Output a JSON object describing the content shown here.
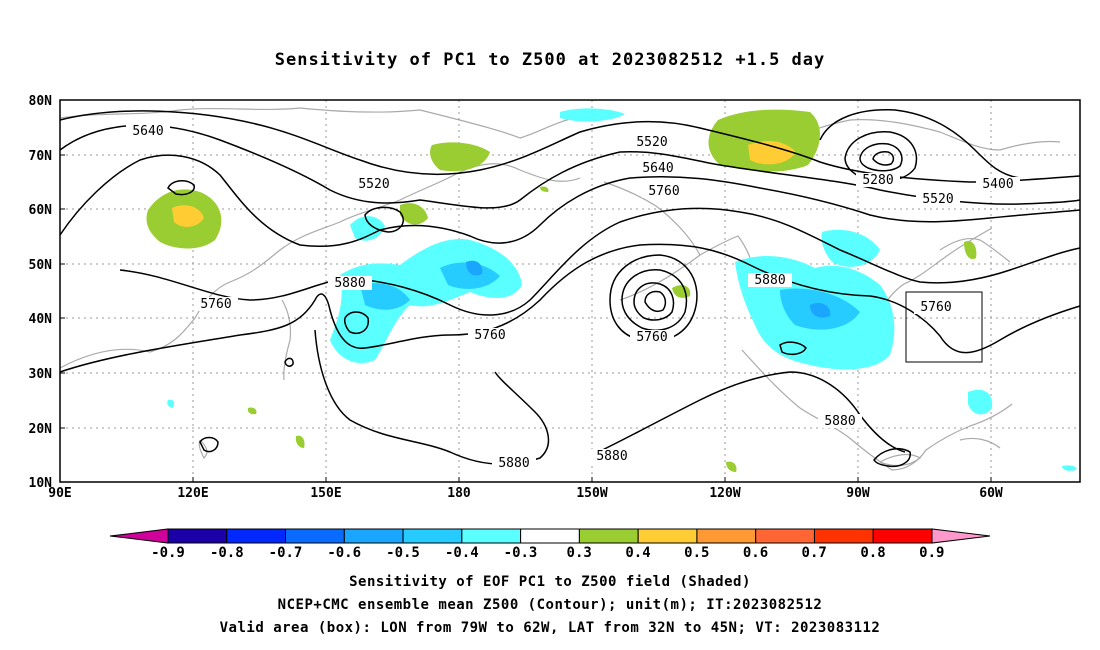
{
  "title": "Sensitivity of PC1 to Z500 at 2023082512 +1.5 day",
  "lat_labels": [
    "80N",
    "70N",
    "60N",
    "50N",
    "40N",
    "30N",
    "20N",
    "10N"
  ],
  "lon_labels": [
    "90E",
    "120E",
    "150E",
    "180",
    "150W",
    "120W",
    "90W",
    "60W"
  ],
  "contour_labels": [
    "5640",
    "5520",
    "5520",
    "5640",
    "5760",
    "5280",
    "5400",
    "5520",
    "5880",
    "5760",
    "5760",
    "5880",
    "5760",
    "5760",
    "5880",
    "5880",
    "5880"
  ],
  "colorbar": {
    "labels": [
      "-0.9",
      "-0.8",
      "-0.7",
      "-0.6",
      "-0.5",
      "-0.4",
      "-0.3",
      "0.3",
      "0.4",
      "0.5",
      "0.6",
      "0.7",
      "0.8",
      "0.9"
    ],
    "colors": [
      "#1a00a6",
      "#0028ff",
      "#0a6cff",
      "#1aa6ff",
      "#26ccff",
      "#5affff",
      "#ffffff",
      "#9acd32",
      "#ffcc33",
      "#ff9933",
      "#ff6633",
      "#ff3300",
      "#ff0000"
    ],
    "low_end_color": "#d0009a",
    "high_end_color": "#ff99cc"
  },
  "captions": [
    "Sensitivity of EOF PC1 to Z500 field (Shaded)",
    "NCEP+CMC ensemble mean Z500 (Contour); unit(m); IT:2023082512",
    "Valid area (box): LON from 79W to 62W, LAT from 32N to 45N; VT: 2023083112"
  ],
  "valid_box": {
    "lon_west": -79,
    "lon_east": -62,
    "lat_south": 32,
    "lat_north": 45
  },
  "map_extent": {
    "lon_min": 90,
    "lon_max": 320,
    "lat_min": 10,
    "lat_max": 80
  }
}
